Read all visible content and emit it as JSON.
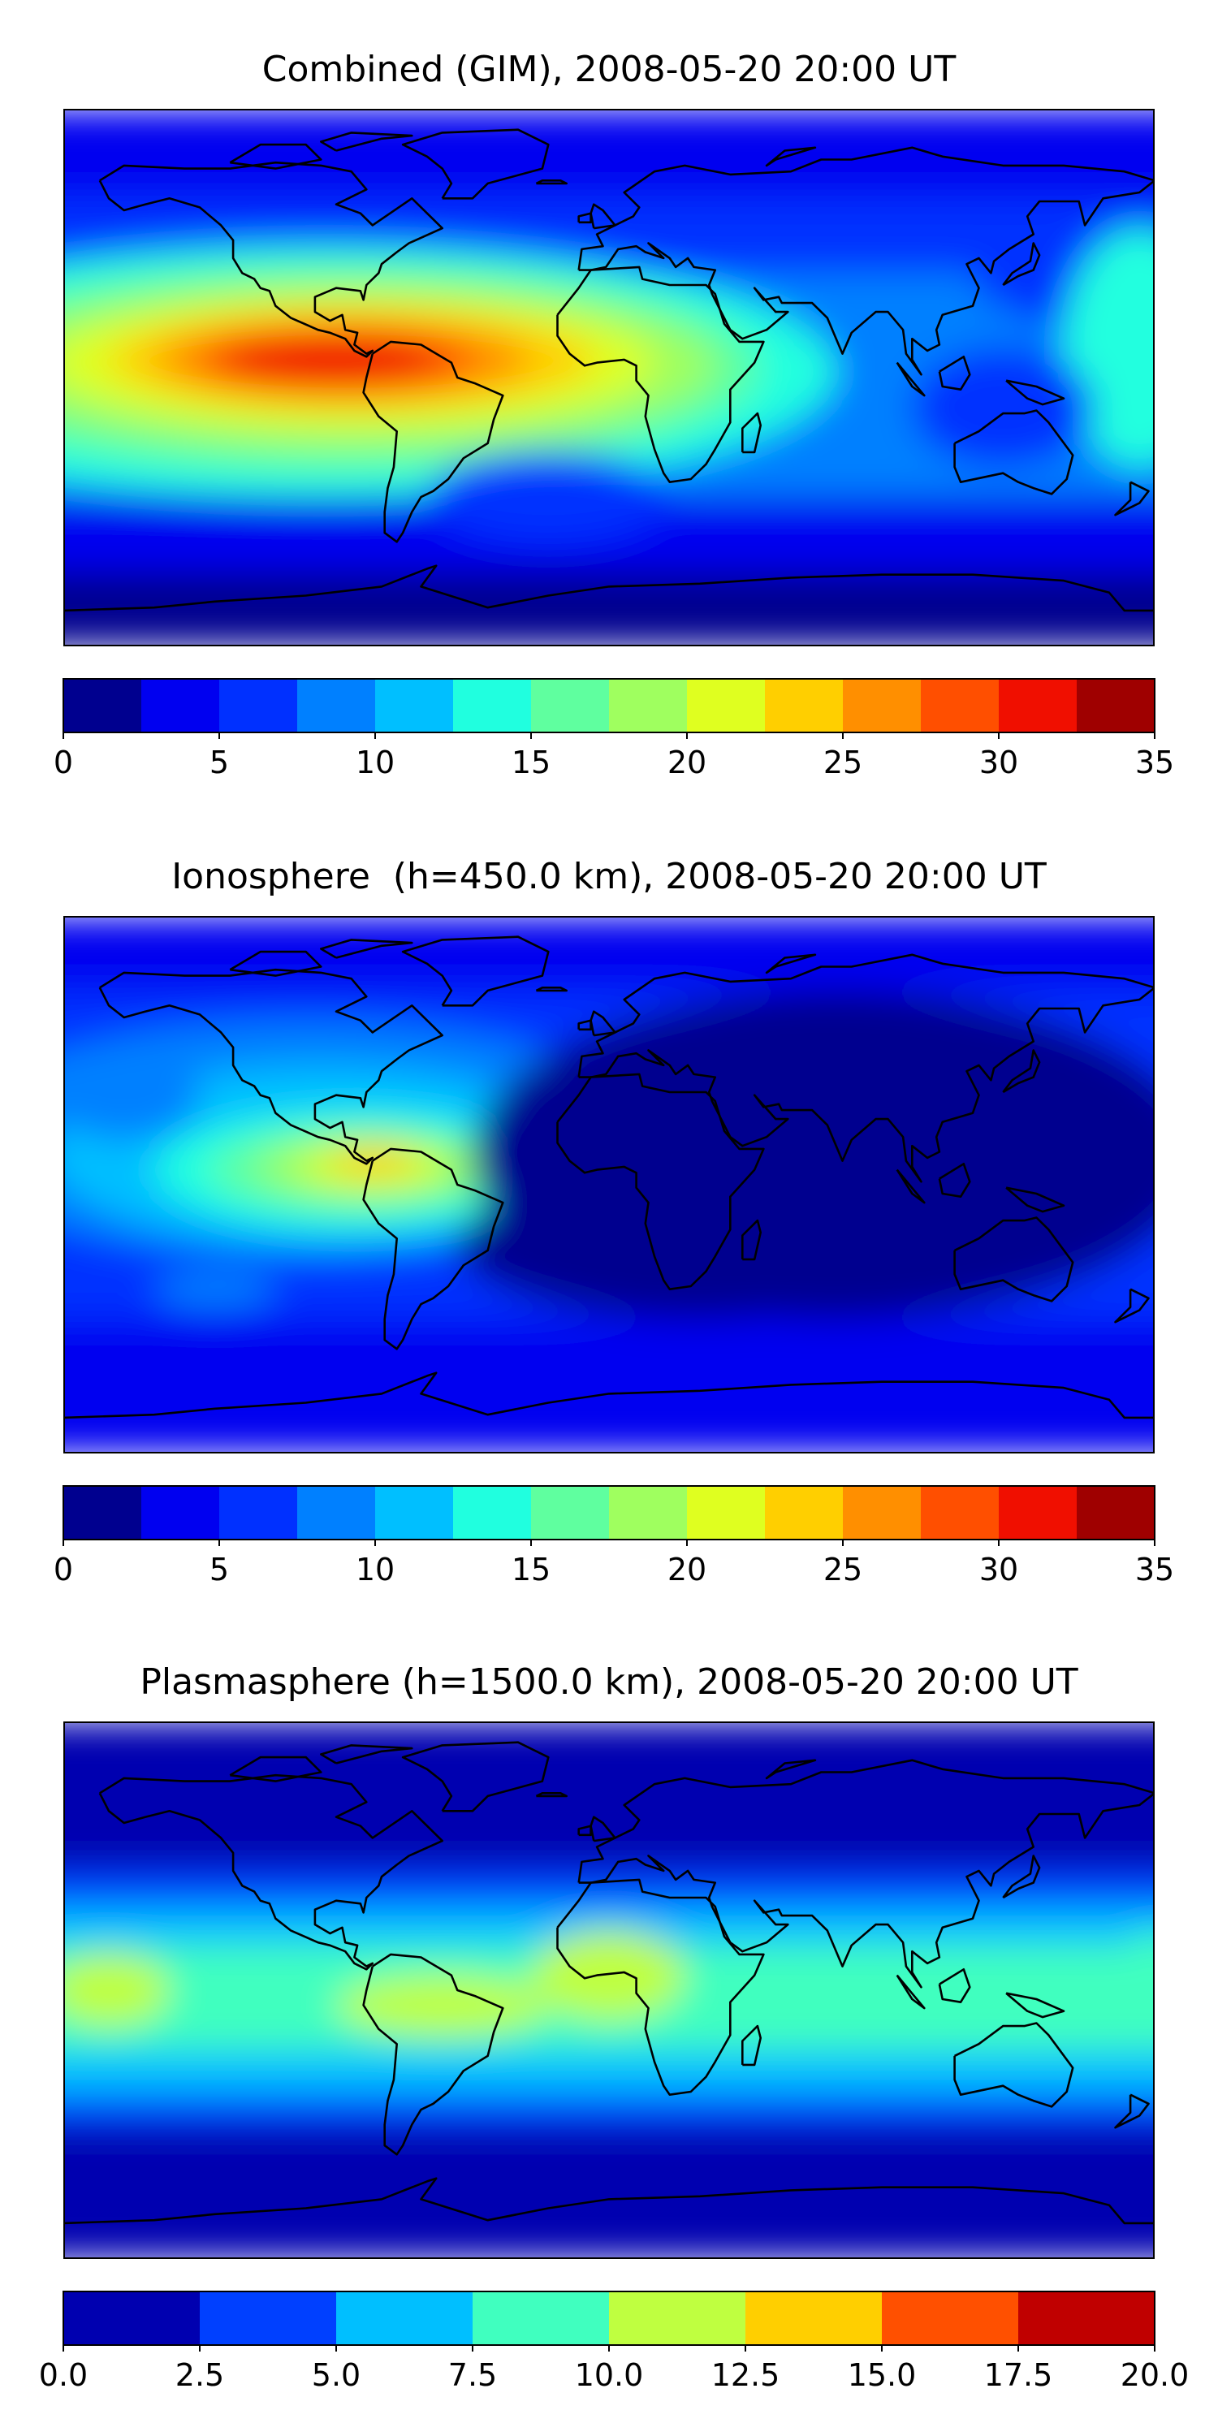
{
  "chart_data": [
    {
      "type": "heatmap",
      "title": "Combined (GIM), 2008-05-20 20:00 UT",
      "colorbar": {
        "boundaries": [
          0,
          2.5,
          5,
          7.5,
          10,
          12.5,
          15,
          17.5,
          20,
          22.5,
          25,
          27.5,
          30,
          32.5,
          35
        ],
        "colors": [
          "#00008f",
          "#0000f0",
          "#0030ff",
          "#0080ff",
          "#00bfff",
          "#20ffdf",
          "#5fff9f",
          "#9fff5f",
          "#dfff20",
          "#ffcf00",
          "#ff8f00",
          "#ff4f00",
          "#f00f00",
          "#9f0000"
        ],
        "tick_values": [
          0,
          5,
          10,
          15,
          20,
          25,
          30,
          35
        ],
        "tick_labels": [
          "0",
          "5",
          "10",
          "15",
          "20",
          "25",
          "30",
          "35"
        ]
      },
      "blobs": [
        {
          "lon": -95,
          "lat": 2,
          "rx": 170,
          "ry": 42,
          "level": 5
        },
        {
          "lon": -90,
          "lat": 3,
          "rx": 140,
          "ry": 34,
          "level": 6
        },
        {
          "lon": -85,
          "lat": 4,
          "rx": 120,
          "ry": 28,
          "level": 7
        },
        {
          "lon": -85,
          "lat": 5,
          "rx": 100,
          "ry": 22,
          "level": 8
        },
        {
          "lon": -85,
          "lat": 6,
          "rx": 80,
          "ry": 17,
          "level": 9
        },
        {
          "lon": -88,
          "lat": 6,
          "rx": 62,
          "ry": 13,
          "level": 10
        },
        {
          "lon": -90,
          "lat": 6,
          "rx": 46,
          "ry": 10,
          "level": 11
        },
        {
          "lon": -92,
          "lat": 6,
          "rx": 36,
          "ry": 8,
          "level": 12
        },
        {
          "lon": 160,
          "lat": 35,
          "rx": 40,
          "ry": 18,
          "level": 2
        },
        {
          "lon": 175,
          "lat": 10,
          "rx": 25,
          "ry": 40,
          "level": 5
        },
        {
          "lon": 130,
          "lat": -10,
          "rx": 30,
          "ry": 20,
          "level": 2
        },
        {
          "lon": -20,
          "lat": -40,
          "rx": 40,
          "ry": 15,
          "level": 2
        }
      ],
      "base_levels": [
        {
          "from_lat": 90,
          "to_lat": 60,
          "level": 1
        },
        {
          "from_lat": 60,
          "to_lat": 35,
          "level": 2
        },
        {
          "from_lat": 35,
          "to_lat": -20,
          "level": 3
        },
        {
          "from_lat": -20,
          "to_lat": -40,
          "level": 3
        },
        {
          "from_lat": -40,
          "to_lat": -65,
          "level": 1
        },
        {
          "from_lat": -65,
          "to_lat": -90,
          "level": 0
        }
      ]
    },
    {
      "type": "heatmap",
      "title": "Ionosphere  (h=450.0 km), 2008-05-20 20:00 UT",
      "colorbar": {
        "boundaries": [
          0,
          2.5,
          5,
          7.5,
          10,
          12.5,
          15,
          17.5,
          20,
          22.5,
          25,
          27.5,
          30,
          32.5,
          35
        ],
        "colors": [
          "#00008f",
          "#0000f0",
          "#0030ff",
          "#0080ff",
          "#00bfff",
          "#20ffdf",
          "#5fff9f",
          "#9fff5f",
          "#dfff20",
          "#ffcf00",
          "#ff8f00",
          "#ff4f00",
          "#f00f00",
          "#9f0000"
        ],
        "tick_values": [
          0,
          5,
          10,
          15,
          20,
          25,
          30,
          35
        ],
        "tick_labels": [
          "0",
          "5",
          "10",
          "15",
          "20",
          "25",
          "30",
          "35"
        ]
      },
      "blobs": [
        {
          "lon": -100,
          "lat": 15,
          "rx": 120,
          "ry": 40,
          "level": 3
        },
        {
          "lon": -95,
          "lat": 10,
          "rx": 90,
          "ry": 30,
          "level": 4
        },
        {
          "lon": -85,
          "lat": 5,
          "rx": 65,
          "ry": 20,
          "level": 5
        },
        {
          "lon": -82,
          "lat": 5,
          "rx": 50,
          "ry": 14,
          "level": 6
        },
        {
          "lon": -80,
          "lat": 6,
          "rx": 36,
          "ry": 10,
          "level": 7
        },
        {
          "lon": -78,
          "lat": 6,
          "rx": 24,
          "ry": 7,
          "level": 8
        },
        {
          "lon": -78,
          "lat": 8,
          "rx": 14,
          "ry": 5,
          "level": 9
        },
        {
          "lon": 75,
          "lat": 10,
          "rx": 120,
          "ry": 55,
          "level": 0
        },
        {
          "lon": 30,
          "lat": -20,
          "rx": 80,
          "ry": 25,
          "level": 0
        },
        {
          "lon": -160,
          "lat": 30,
          "rx": 25,
          "ry": 15,
          "level": 3
        },
        {
          "lon": -130,
          "lat": -35,
          "rx": 20,
          "ry": 6,
          "level": 3
        }
      ],
      "base_levels": [
        {
          "from_lat": 90,
          "to_lat": 65,
          "level": 1
        },
        {
          "from_lat": 65,
          "to_lat": 40,
          "level": 2
        },
        {
          "from_lat": 40,
          "to_lat": -10,
          "level": 2
        },
        {
          "from_lat": -10,
          "to_lat": -45,
          "level": 2
        },
        {
          "from_lat": -45,
          "to_lat": -90,
          "level": 1
        }
      ]
    },
    {
      "type": "heatmap",
      "title": "Plasmasphere (h=1500.0 km), 2008-05-20 20:00 UT",
      "colorbar": {
        "boundaries": [
          0,
          2.5,
          5,
          7.5,
          10,
          12.5,
          15,
          17.5,
          20
        ],
        "colors": [
          "#0000b0",
          "#0040ff",
          "#00bfff",
          "#40ffbf",
          "#bfff40",
          "#ffcf00",
          "#ff5000",
          "#c00000"
        ],
        "tick_values": [
          0,
          2.5,
          5,
          7.5,
          10,
          12.5,
          15,
          17.5,
          20
        ],
        "tick_labels": [
          "0.0",
          "2.5",
          "5.0",
          "7.5",
          "10.0",
          "12.5",
          "15.0",
          "17.5",
          "20.0"
        ]
      },
      "blobs": [
        {
          "lon": -165,
          "lat": 0,
          "rx": 20,
          "ry": 12,
          "level": 4
        },
        {
          "lon": -55,
          "lat": -5,
          "rx": 35,
          "ry": 10,
          "level": 4
        },
        {
          "lon": 0,
          "lat": 5,
          "rx": 25,
          "ry": 15,
          "level": 4
        },
        {
          "lon": 180,
          "lat": 0,
          "rx": 12,
          "ry": 20,
          "level": 3
        }
      ],
      "base_levels": [
        {
          "from_lat": 90,
          "to_lat": 40,
          "level": 0
        },
        {
          "from_lat": 40,
          "to_lat": 28,
          "level": 1
        },
        {
          "from_lat": 28,
          "to_lat": 15,
          "level": 2
        },
        {
          "from_lat": 15,
          "to_lat": -20,
          "level": 3
        },
        {
          "from_lat": -20,
          "to_lat": -35,
          "level": 2
        },
        {
          "from_lat": -35,
          "to_lat": -45,
          "level": 1
        },
        {
          "from_lat": -45,
          "to_lat": -90,
          "level": 0
        }
      ]
    }
  ]
}
